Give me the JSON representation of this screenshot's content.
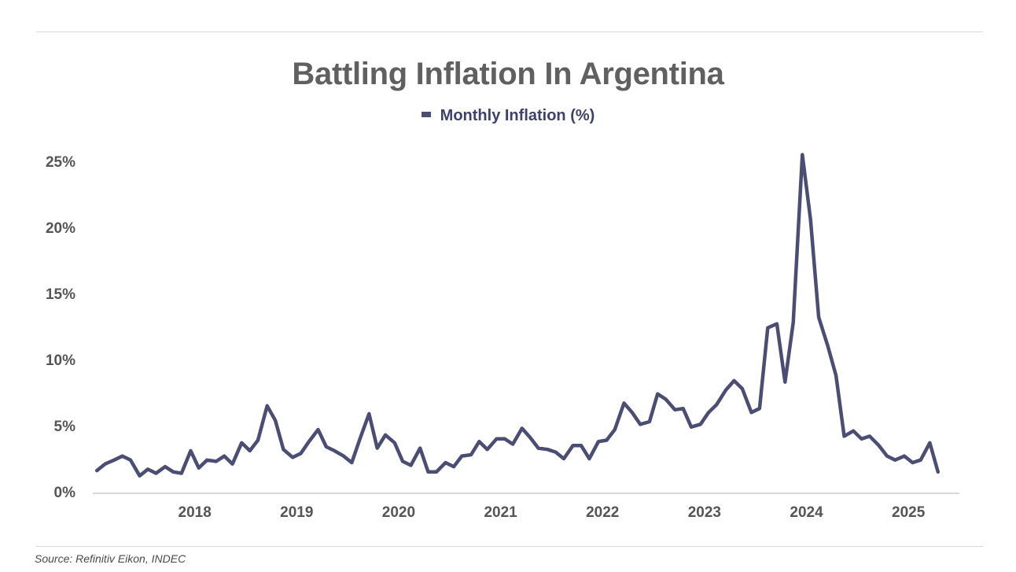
{
  "source": "Source: Refinitiv Eikon, INDEC",
  "colors": {
    "line": "#4b4d72",
    "axis": "#cccccc",
    "title": "#606060"
  },
  "chart_data": {
    "type": "line",
    "title": "Battling Inflation In Argentina",
    "xlabel": "",
    "ylabel": "",
    "legend": "top-center",
    "grid": false,
    "ylim": [
      0,
      25
    ],
    "yticks": [
      0,
      5,
      10,
      15,
      20,
      25
    ],
    "ytick_labels": [
      "0%",
      "5%",
      "10%",
      "15%",
      "20%",
      "25%"
    ],
    "xlim": [
      2017.0,
      2025.5
    ],
    "xticks": [
      2018,
      2019,
      2020,
      2021,
      2022,
      2023,
      2024,
      2025
    ],
    "xtick_labels": [
      "2018",
      "2019",
      "2020",
      "2021",
      "2022",
      "2023",
      "2024",
      "2025"
    ],
    "series": [
      {
        "name": "Monthly Inflation (%)",
        "x": [
          2017.04,
          2017.12,
          2017.21,
          2017.29,
          2017.37,
          2017.46,
          2017.54,
          2017.62,
          2017.71,
          2017.79,
          2017.87,
          2017.96,
          2018.04,
          2018.12,
          2018.21,
          2018.29,
          2018.37,
          2018.46,
          2018.54,
          2018.62,
          2018.71,
          2018.79,
          2018.87,
          2018.96,
          2019.04,
          2019.12,
          2019.21,
          2019.29,
          2019.37,
          2019.46,
          2019.54,
          2019.62,
          2019.71,
          2019.79,
          2019.87,
          2019.96,
          2020.04,
          2020.12,
          2020.21,
          2020.29,
          2020.37,
          2020.46,
          2020.54,
          2020.62,
          2020.71,
          2020.79,
          2020.87,
          2020.96,
          2021.04,
          2021.12,
          2021.21,
          2021.29,
          2021.37,
          2021.46,
          2021.54,
          2021.62,
          2021.71,
          2021.79,
          2021.87,
          2021.96,
          2022.04,
          2022.12,
          2022.21,
          2022.29,
          2022.37,
          2022.46,
          2022.54,
          2022.62,
          2022.71,
          2022.79,
          2022.87,
          2022.96,
          2023.04,
          2023.12,
          2023.21,
          2023.29,
          2023.37,
          2023.46,
          2023.54,
          2023.62,
          2023.71,
          2023.79,
          2023.87,
          2023.96,
          2024.04,
          2024.12,
          2024.21,
          2024.29,
          2024.37,
          2024.46,
          2024.54,
          2024.62,
          2024.71,
          2024.79,
          2024.87,
          2024.96,
          2025.04,
          2025.12,
          2025.21,
          2025.29
        ],
        "values": [
          1.6,
          2.1,
          2.4,
          2.7,
          2.4,
          1.2,
          1.7,
          1.4,
          1.9,
          1.5,
          1.4,
          3.1,
          1.8,
          2.4,
          2.3,
          2.7,
          2.1,
          3.7,
          3.1,
          3.9,
          6.5,
          5.4,
          3.2,
          2.6,
          2.9,
          3.8,
          4.7,
          3.4,
          3.1,
          2.7,
          2.2,
          4.0,
          5.9,
          3.3,
          4.3,
          3.7,
          2.3,
          2.0,
          3.3,
          1.5,
          1.5,
          2.2,
          1.9,
          2.7,
          2.8,
          3.8,
          3.2,
          4.0,
          4.0,
          3.6,
          4.8,
          4.1,
          3.3,
          3.2,
          3.0,
          2.5,
          3.5,
          3.5,
          2.5,
          3.8,
          3.9,
          4.7,
          6.7,
          6.0,
          5.1,
          5.3,
          7.4,
          7.0,
          6.2,
          6.3,
          4.9,
          5.1,
          6.0,
          6.6,
          7.7,
          8.4,
          7.8,
          6.0,
          6.3,
          12.4,
          12.7,
          8.3,
          12.8,
          25.5,
          20.6,
          13.2,
          11.0,
          8.8,
          4.2,
          4.6,
          4.0,
          4.2,
          3.5,
          2.7,
          2.4,
          2.7,
          2.2,
          2.4,
          3.7,
          1.5
        ]
      }
    ]
  }
}
